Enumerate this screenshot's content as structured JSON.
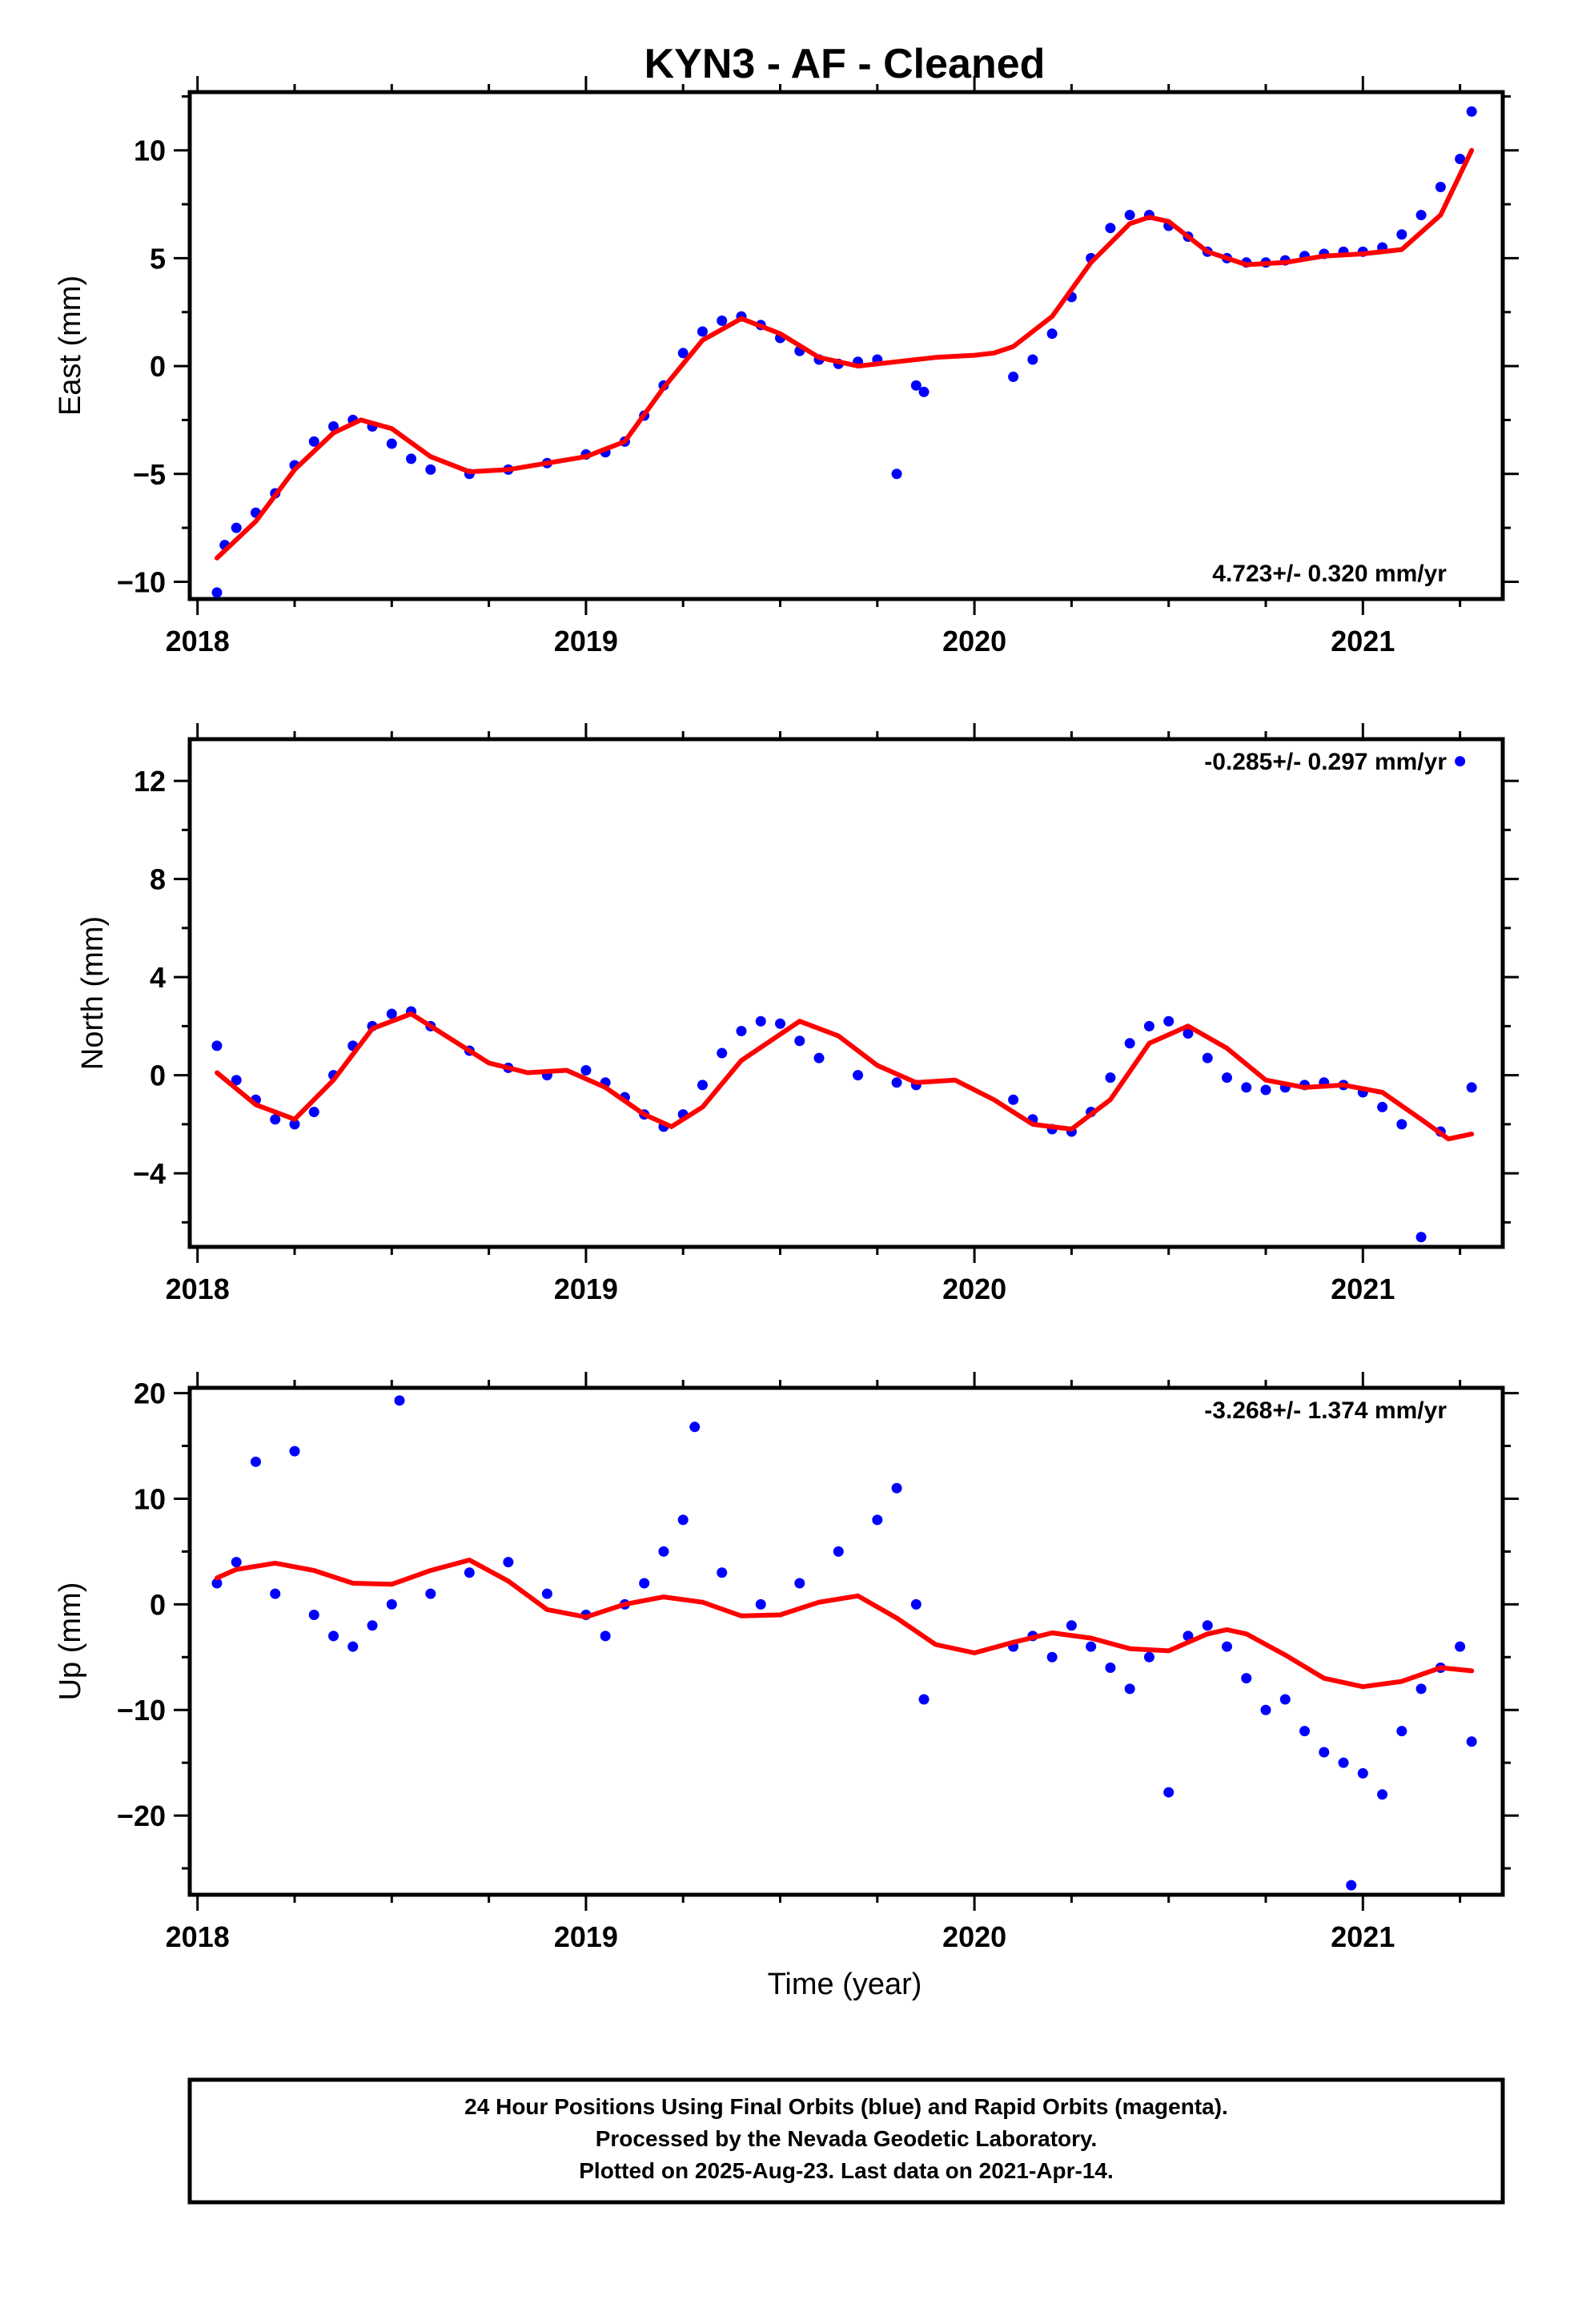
{
  "title": "KYN3  - AF - Cleaned",
  "xlabel": "Time (year)",
  "footer": {
    "line1": "24 Hour Positions Using Final Orbits (blue) and Rapid Orbits (magenta).",
    "line2": "Processed by the Nevada Geodetic Laboratory.",
    "line3": "Plotted on 2025-Aug-23. Last data on 2021-Apr-14."
  },
  "colors": {
    "final_orbits": "#0000ff",
    "trend": "#ff0000"
  },
  "chart_data": [
    {
      "type": "scatter",
      "ylabel": "East (mm)",
      "rate_label": "4.723+/- 0.320 mm/yr",
      "xlim": [
        2017.98,
        2021.36
      ],
      "ylim": [
        -10.8,
        12.7
      ],
      "x_ticks": [
        2018,
        2019,
        2020,
        2021
      ],
      "y_ticks": [
        -10,
        -5,
        0,
        5,
        10
      ],
      "grid": false,
      "series": [
        {
          "role": "daily positions (final orbits)",
          "color": "#0000ff",
          "x": [
            2018.05,
            2018.07,
            2018.1,
            2018.15,
            2018.2,
            2018.25,
            2018.3,
            2018.35,
            2018.4,
            2018.45,
            2018.5,
            2018.55,
            2018.6,
            2018.7,
            2018.8,
            2018.9,
            2019.0,
            2019.05,
            2019.1,
            2019.15,
            2019.2,
            2019.25,
            2019.3,
            2019.35,
            2019.4,
            2019.45,
            2019.5,
            2019.55,
            2019.6,
            2019.65,
            2019.7,
            2019.75,
            2019.8,
            2019.85,
            2019.87,
            2020.1,
            2020.15,
            2020.2,
            2020.25,
            2020.3,
            2020.35,
            2020.4,
            2020.45,
            2020.5,
            2020.55,
            2020.6,
            2020.65,
            2020.7,
            2020.75,
            2020.8,
            2020.85,
            2020.9,
            2020.95,
            2021.0,
            2021.05,
            2021.1,
            2021.15,
            2021.2,
            2021.25,
            2021.28
          ],
          "y": [
            -10.5,
            -8.3,
            -7.5,
            -6.8,
            -5.9,
            -4.6,
            -3.5,
            -2.8,
            -2.5,
            -2.8,
            -3.6,
            -4.3,
            -4.8,
            -5.0,
            -4.8,
            -4.5,
            -4.1,
            -4.0,
            -3.5,
            -2.3,
            -0.9,
            0.6,
            1.6,
            2.1,
            2.3,
            1.9,
            1.3,
            0.7,
            0.3,
            0.1,
            0.2,
            0.3,
            -5.0,
            -0.9,
            -1.2,
            -0.5,
            0.3,
            1.5,
            3.2,
            5.0,
            6.4,
            7.0,
            7.0,
            6.5,
            6.0,
            5.3,
            5.0,
            4.8,
            4.8,
            4.9,
            5.1,
            5.2,
            5.3,
            5.3,
            5.5,
            6.1,
            7.0,
            8.3,
            9.6,
            11.8
          ]
        },
        {
          "role": "trend model",
          "color": "#ff0000",
          "x": [
            2018.05,
            2018.15,
            2018.25,
            2018.35,
            2018.42,
            2018.5,
            2018.6,
            2018.7,
            2018.8,
            2018.9,
            2019.0,
            2019.1,
            2019.2,
            2019.3,
            2019.4,
            2019.5,
            2019.6,
            2019.7,
            2019.8,
            2019.9,
            2020.0,
            2020.05,
            2020.1,
            2020.2,
            2020.3,
            2020.4,
            2020.45,
            2020.5,
            2020.6,
            2020.7,
            2020.8,
            2020.9,
            2021.0,
            2021.1,
            2021.2,
            2021.28
          ],
          "y": [
            -8.9,
            -7.2,
            -4.8,
            -3.1,
            -2.5,
            -2.9,
            -4.2,
            -4.9,
            -4.8,
            -4.5,
            -4.2,
            -3.5,
            -1.0,
            1.2,
            2.2,
            1.5,
            0.4,
            0.0,
            0.2,
            0.4,
            0.5,
            0.6,
            0.9,
            2.3,
            4.8,
            6.6,
            6.9,
            6.7,
            5.3,
            4.7,
            4.8,
            5.1,
            5.2,
            5.4,
            7.0,
            10.0
          ]
        }
      ]
    },
    {
      "type": "scatter",
      "ylabel": "North (mm)",
      "rate_label": "-0.285+/- 0.297 mm/yr",
      "xlim": [
        2017.98,
        2021.36
      ],
      "ylim": [
        -7.0,
        13.7
      ],
      "x_ticks": [
        2018,
        2019,
        2020,
        2021
      ],
      "y_ticks": [
        -4,
        0,
        4,
        8,
        12
      ],
      "grid": false,
      "series": [
        {
          "role": "daily positions (final orbits)",
          "color": "#0000ff",
          "x": [
            2018.05,
            2018.1,
            2018.15,
            2018.2,
            2018.25,
            2018.3,
            2018.35,
            2018.4,
            2018.45,
            2018.5,
            2018.55,
            2018.6,
            2018.7,
            2018.8,
            2018.9,
            2019.0,
            2019.05,
            2019.1,
            2019.15,
            2019.2,
            2019.25,
            2019.3,
            2019.35,
            2019.4,
            2019.45,
            2019.5,
            2019.55,
            2019.6,
            2019.7,
            2019.8,
            2019.85,
            2020.1,
            2020.15,
            2020.2,
            2020.25,
            2020.3,
            2020.35,
            2020.4,
            2020.45,
            2020.5,
            2020.55,
            2020.6,
            2020.65,
            2020.7,
            2020.75,
            2020.8,
            2020.85,
            2020.9,
            2020.95,
            2021.0,
            2021.05,
            2021.1,
            2021.15,
            2021.2,
            2021.25,
            2021.28
          ],
          "y": [
            1.2,
            -0.2,
            -1.0,
            -1.8,
            -2.0,
            -1.5,
            0.0,
            1.2,
            2.0,
            2.5,
            2.6,
            2.0,
            1.0,
            0.3,
            0.0,
            0.2,
            -0.3,
            -0.9,
            -1.6,
            -2.1,
            -1.6,
            -0.4,
            0.9,
            1.8,
            2.2,
            2.1,
            1.4,
            0.7,
            0.0,
            -0.3,
            -0.4,
            -1.0,
            -1.8,
            -2.2,
            -2.3,
            -1.5,
            -0.1,
            1.3,
            2.0,
            2.2,
            1.7,
            0.7,
            -0.1,
            -0.5,
            -0.6,
            -0.5,
            -0.4,
            -0.3,
            -0.4,
            -0.7,
            -1.3,
            -2.0,
            -6.6,
            -2.3,
            12.8,
            -0.5
          ]
        },
        {
          "role": "trend model",
          "color": "#ff0000",
          "x": [
            2018.05,
            2018.15,
            2018.25,
            2018.35,
            2018.45,
            2018.55,
            2018.65,
            2018.75,
            2018.85,
            2018.95,
            2019.05,
            2019.15,
            2019.22,
            2019.3,
            2019.4,
            2019.55,
            2019.65,
            2019.75,
            2019.85,
            2019.95,
            2020.05,
            2020.15,
            2020.25,
            2020.35,
            2020.45,
            2020.55,
            2020.65,
            2020.75,
            2020.85,
            2020.95,
            2021.05,
            2021.15,
            2021.22,
            2021.28
          ],
          "y": [
            0.1,
            -1.2,
            -1.8,
            -0.2,
            1.9,
            2.5,
            1.5,
            0.5,
            0.1,
            0.2,
            -0.5,
            -1.6,
            -2.1,
            -1.3,
            0.6,
            2.2,
            1.6,
            0.4,
            -0.3,
            -0.2,
            -1.0,
            -2.0,
            -2.2,
            -1.0,
            1.3,
            2.0,
            1.1,
            -0.2,
            -0.5,
            -0.4,
            -0.7,
            -1.8,
            -2.6,
            -2.4
          ]
        }
      ]
    },
    {
      "type": "scatter",
      "ylabel": "Up (mm)",
      "rate_label": "-3.268+/- 1.374 mm/yr",
      "xlim": [
        2017.98,
        2021.36
      ],
      "ylim": [
        -27.5,
        20.5
      ],
      "x_ticks": [
        2018,
        2019,
        2020,
        2021
      ],
      "y_ticks": [
        -20,
        -10,
        0,
        10,
        20
      ],
      "grid": false,
      "series": [
        {
          "role": "daily positions (final orbits)",
          "color": "#0000ff",
          "x": [
            2018.05,
            2018.1,
            2018.15,
            2018.2,
            2018.25,
            2018.3,
            2018.35,
            2018.4,
            2018.45,
            2018.5,
            2018.52,
            2018.6,
            2018.7,
            2018.8,
            2018.9,
            2019.0,
            2019.05,
            2019.1,
            2019.15,
            2019.2,
            2019.25,
            2019.28,
            2019.35,
            2019.45,
            2019.55,
            2019.65,
            2019.75,
            2019.8,
            2019.85,
            2019.87,
            2020.1,
            2020.15,
            2020.2,
            2020.25,
            2020.3,
            2020.35,
            2020.4,
            2020.45,
            2020.5,
            2020.55,
            2020.6,
            2020.65,
            2020.7,
            2020.75,
            2020.8,
            2020.85,
            2020.9,
            2020.95,
            2020.97,
            2021.0,
            2021.05,
            2021.1,
            2021.15,
            2021.2,
            2021.25,
            2021.28
          ],
          "y": [
            2.0,
            4.0,
            13.5,
            1.0,
            14.5,
            -1.0,
            -3.0,
            -4.0,
            -2.0,
            0.0,
            19.3,
            1.0,
            3.0,
            4.0,
            1.0,
            -1.0,
            -3.0,
            0.0,
            2.0,
            5.0,
            8.0,
            16.8,
            3.0,
            0.0,
            2.0,
            5.0,
            8.0,
            11.0,
            0.0,
            -9.0,
            -4.0,
            -3.0,
            -5.0,
            -2.0,
            -4.0,
            -6.0,
            -8.0,
            -5.0,
            -17.8,
            -3.0,
            -2.0,
            -4.0,
            -7.0,
            -10.0,
            -9.0,
            -12.0,
            -14.0,
            -15.0,
            -26.6,
            -16.0,
            -18.0,
            -12.0,
            -8.0,
            -6.0,
            -4.0,
            -13.0
          ]
        },
        {
          "role": "trend model",
          "color": "#ff0000",
          "x": [
            2018.05,
            2018.1,
            2018.2,
            2018.3,
            2018.4,
            2018.5,
            2018.6,
            2018.7,
            2018.8,
            2018.9,
            2019.0,
            2019.1,
            2019.2,
            2019.3,
            2019.4,
            2019.5,
            2019.6,
            2019.7,
            2019.8,
            2019.9,
            2020.0,
            2020.1,
            2020.2,
            2020.3,
            2020.4,
            2020.5,
            2020.6,
            2020.65,
            2020.7,
            2020.8,
            2020.9,
            2021.0,
            2021.1,
            2021.2,
            2021.28
          ],
          "y": [
            2.5,
            3.3,
            3.9,
            3.2,
            2.0,
            1.9,
            3.2,
            4.2,
            2.2,
            -0.5,
            -1.2,
            0.0,
            0.7,
            0.2,
            -1.1,
            -1.0,
            0.2,
            0.8,
            -1.3,
            -3.8,
            -4.6,
            -3.6,
            -2.7,
            -3.2,
            -4.2,
            -4.4,
            -2.8,
            -2.4,
            -2.8,
            -4.8,
            -7.0,
            -7.8,
            -7.3,
            -6.0,
            -6.3
          ]
        }
      ]
    }
  ]
}
